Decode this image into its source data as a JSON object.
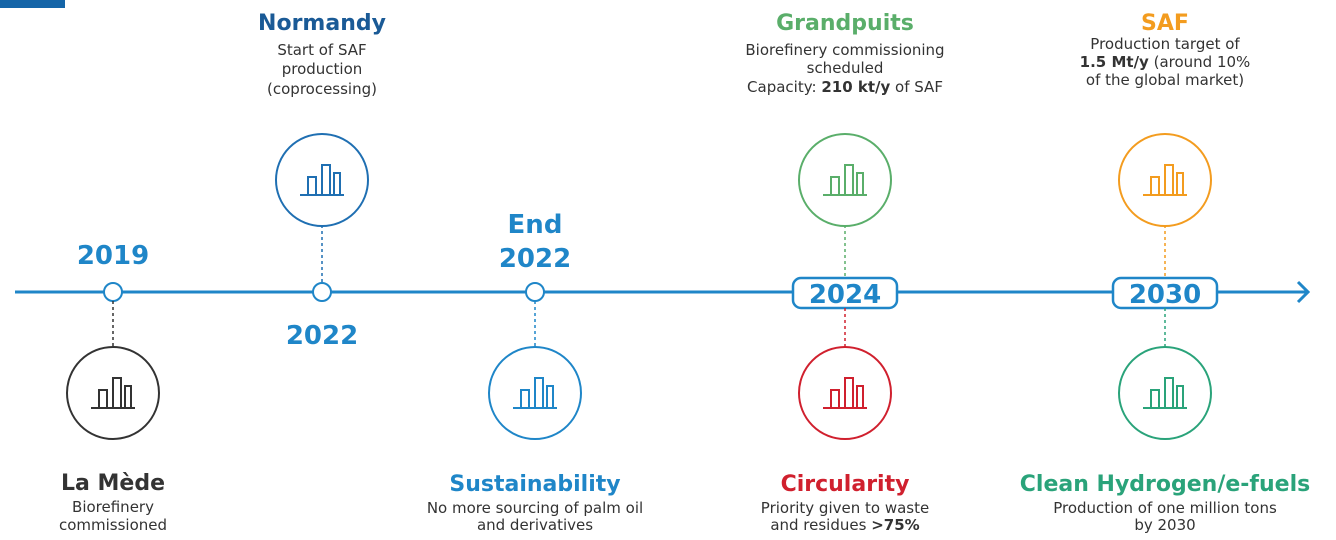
{
  "years": [
    [
      "2019"
    ],
    [
      "2022"
    ],
    [
      "End",
      "2022"
    ],
    [
      "2024"
    ],
    [
      "2030"
    ]
  ],
  "cards": [
    {
      "title": "La Mède",
      "lines": [
        [
          "Biorefinery"
        ],
        [
          "commissioned"
        ]
      ]
    },
    {
      "title": "Normandy",
      "lines": [
        [
          "Start of SAF"
        ],
        [
          "production"
        ],
        [
          "(coprocessing)"
        ]
      ]
    },
    {
      "title": "Sustainability",
      "lines": [
        [
          "No more sourcing of palm oil"
        ],
        [
          "and derivatives"
        ]
      ]
    },
    {
      "title": "Grandpuits",
      "lines": [
        [
          "Biorefinery commissioning"
        ],
        [
          "scheduled"
        ],
        [
          "Capacity: ",
          {
            "bold": "210 kt/y"
          },
          " of SAF"
        ]
      ]
    },
    {
      "title": "SAF",
      "lines": [
        [
          "Production target of"
        ],
        [
          {
            "bold": "1.5 Mt/y"
          },
          " (around 10%"
        ],
        [
          "of the global market)"
        ]
      ]
    },
    {
      "title": "Circularity",
      "lines": [
        [
          "Priority given to waste"
        ],
        [
          "and residues ",
          {
            "bold": ">75%"
          }
        ]
      ]
    },
    {
      "title": "Clean Hydrogen/e-fuels",
      "lines": [
        [
          "Production of one million tons"
        ],
        [
          "by 2030"
        ]
      ]
    }
  ]
}
